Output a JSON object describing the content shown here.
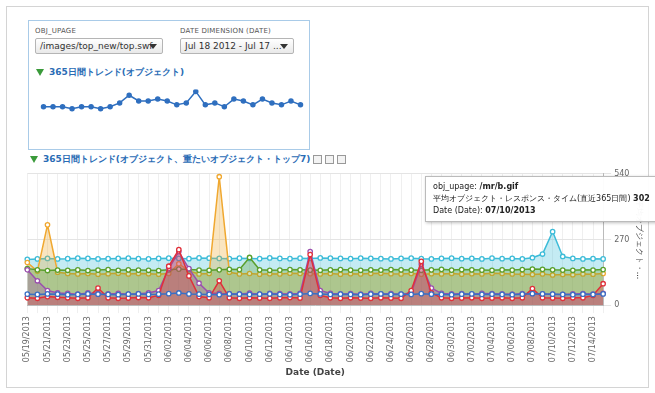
{
  "controls": [
    {
      "label": "OBJ_UPAGE",
      "value": "/images/top_new/top.swf"
    },
    {
      "label": "DATE DIMENSION (DATE)",
      "value": "Jul 18 2012 - Jul 17 ..."
    }
  ],
  "chart_data": [
    {
      "type": "line",
      "title": "365日間トレンド(オブジェクト)",
      "values": [
        3,
        3,
        3,
        2,
        3,
        3,
        2,
        3,
        5,
        9,
        6,
        6,
        7,
        6,
        4,
        5,
        11,
        4,
        5,
        3,
        7,
        6,
        4,
        7,
        5,
        4,
        6,
        4
      ],
      "color": "#2f6fbf",
      "marker": "circle",
      "ylim": [
        0,
        12
      ],
      "tick_labels": false,
      "grid": false
    },
    {
      "type": "line",
      "title": "365日間トレンド(オブジェクト、重たいオブジェクト・トップ7)",
      "x_label": "Date (Date)",
      "y_label": "平均オブジェクト・...",
      "categories": [
        "05/19/2013",
        null,
        "05/21/2013",
        null,
        "05/23/2013",
        null,
        "05/25/2013",
        null,
        "05/27/2013",
        null,
        "05/29/2013",
        null,
        "05/31/2013",
        null,
        "06/02/2013",
        null,
        "06/04/2013",
        null,
        "06/06/2013",
        null,
        "06/08/2013",
        null,
        "06/10/2013",
        null,
        "06/12/2013",
        null,
        "06/14/2013",
        null,
        "06/16/2013",
        null,
        "06/18/2013",
        null,
        "06/20/2013",
        null,
        "06/22/2013",
        null,
        "06/24/2013",
        null,
        "06/26/2013",
        null,
        "06/28/2013",
        null,
        "06/30/2013",
        null,
        "07/02/2013",
        null,
        "07/04/2013",
        null,
        "07/06/2013",
        null,
        "07/08/2013",
        null,
        "07/10/2013",
        null,
        "07/12/2013",
        null,
        "07/14/2013",
        null
      ],
      "series": [
        {
          "type": "area",
          "color": "#3dbcd8",
          "marker": "circle",
          "values": [
            188,
            190,
            192,
            190,
            191,
            193,
            192,
            190,
            191,
            192,
            193,
            191,
            190,
            192,
            193,
            192,
            191,
            194,
            193,
            192,
            191,
            193,
            192,
            191,
            194,
            192,
            191,
            193,
            192,
            194,
            193,
            192,
            191,
            193,
            192,
            191,
            190,
            192,
            193,
            191,
            190,
            192,
            193,
            191,
            192,
            190,
            193,
            191,
            192,
            190,
            195,
            210,
            302,
            200,
            192,
            190,
            191,
            190
          ]
        },
        {
          "type": "area",
          "color": "#f0a830",
          "marker": "circle",
          "values": [
            175,
            140,
            330,
            135,
            130,
            128,
            130,
            127,
            129,
            131,
            128,
            130,
            129,
            127,
            130,
            170,
            140,
            128,
            130,
            528,
            135,
            128,
            130,
            127,
            129,
            128,
            131,
            130,
            129,
            128,
            130,
            127,
            129,
            128,
            130,
            131,
            129,
            128,
            130,
            127,
            129,
            128,
            130,
            127,
            129,
            128,
            131,
            130,
            128,
            127,
            126,
            128,
            124,
            126,
            125,
            128,
            127,
            130
          ]
        },
        {
          "type": "area",
          "color": "#5aa02c",
          "marker": "circle",
          "values": [
            150,
            145,
            142,
            144,
            143,
            145,
            142,
            144,
            146,
            143,
            145,
            144,
            143,
            142,
            145,
            148,
            146,
            144,
            143,
            145,
            147,
            146,
            196,
            145,
            143,
            144,
            146,
            145,
            144,
            143,
            145,
            146,
            144,
            143,
            145,
            144,
            146,
            145,
            144,
            143,
            145,
            147,
            144,
            146,
            145,
            144,
            143,
            145,
            144,
            146,
            148,
            147,
            145,
            144,
            143,
            145,
            144,
            146
          ]
        },
        {
          "type": "area",
          "color": "#9b4fae",
          "marker": "circle",
          "values": [
            145,
            100,
            60,
            50,
            48,
            45,
            50,
            47,
            46,
            48,
            45,
            47,
            50,
            60,
            150,
            220,
            150,
            90,
            50,
            48,
            47,
            46,
            49,
            45,
            48,
            47,
            46,
            48,
            220,
            60,
            48,
            46,
            47,
            45,
            48,
            46,
            47,
            45,
            50,
            168,
            70,
            48,
            46,
            47,
            45,
            48,
            47,
            46,
            45,
            47,
            48,
            46,
            45,
            44,
            46,
            47,
            45,
            48
          ]
        },
        {
          "type": "area",
          "color": "#e0303a",
          "marker": "circle",
          "values": [
            30,
            28,
            35,
            32,
            30,
            28,
            30,
            70,
            30,
            28,
            29,
            31,
            30,
            40,
            160,
            228,
            120,
            35,
            30,
            100,
            30,
            28,
            30,
            29,
            28,
            30,
            31,
            29,
            208,
            40,
            30,
            28,
            30,
            29,
            28,
            30,
            29,
            28,
            60,
            180,
            50,
            30,
            28,
            29,
            30,
            28,
            29,
            30,
            28,
            30,
            68,
            30,
            29,
            28,
            30,
            30,
            40,
            88
          ]
        },
        {
          "type": "line",
          "color": "#3a6fc4",
          "marker": "circle",
          "values": [
            45,
            44,
            46,
            45,
            43,
            44,
            46,
            45,
            44,
            43,
            45,
            46,
            44,
            45,
            47,
            50,
            46,
            45,
            44,
            43,
            46,
            45,
            44,
            45,
            46,
            44,
            43,
            45,
            48,
            46,
            44,
            45,
            44,
            43,
            45,
            46,
            44,
            45,
            44,
            47,
            45,
            44,
            43,
            45,
            46,
            44,
            45,
            44,
            43,
            45,
            47,
            46,
            45,
            44,
            43,
            45,
            44,
            46
          ]
        }
      ],
      "ylim": [
        0,
        540
      ],
      "yticks": [
        0,
        270,
        540
      ],
      "grid": true,
      "annotations": [
        {
          "series_label": "obj_upage:",
          "series_value": "/mr/b.gif",
          "value_label": "平均オブジェクト・レスポンス・タイム(直近365日間)",
          "value": 302,
          "date_label": "Date (Date):",
          "date": "07/10/2013"
        }
      ]
    }
  ]
}
